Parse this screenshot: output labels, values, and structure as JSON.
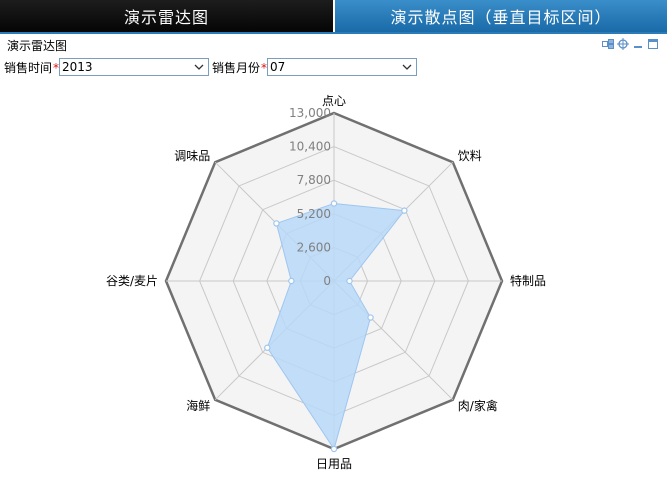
{
  "tabs": [
    {
      "label": "演示雷达图",
      "active": false
    },
    {
      "label": "演示散点图（垂直目标区间）",
      "active": true
    }
  ],
  "chart_title": "演示雷达图",
  "toolbar": {
    "icons": [
      "export-icon",
      "crosshair-icon",
      "minimize-icon",
      "maximize-icon"
    ]
  },
  "filters": {
    "year": {
      "label": "销售时间",
      "required_mark": "*",
      "value": "2013"
    },
    "month": {
      "label": "销售月份",
      "required_mark": "*",
      "value": "07"
    }
  },
  "colors": {
    "tab_active": "#2478b7",
    "tab_inactive": "#0a0a0a",
    "series_fill": "#b8d8f8",
    "series_stroke": "#9ec6ef",
    "outer_ring": "#707070",
    "grid": "#c8c8c8",
    "background": "#f4f4f4"
  },
  "chart_data": {
    "type": "radar",
    "title": "",
    "indicators": [
      "点心",
      "饮料",
      "特制品",
      "肉/家禽",
      "日用品",
      "海鲜",
      "谷类/麦片",
      "调味品"
    ],
    "ticks": [
      "0",
      "2,600",
      "5,200",
      "7,800",
      "10,400",
      "13,000"
    ],
    "max": 13000,
    "series": [
      {
        "values": [
          6000,
          7700,
          1200,
          4000,
          13000,
          7300,
          3300,
          6300
        ]
      }
    ],
    "grid": true,
    "legend": "none"
  }
}
